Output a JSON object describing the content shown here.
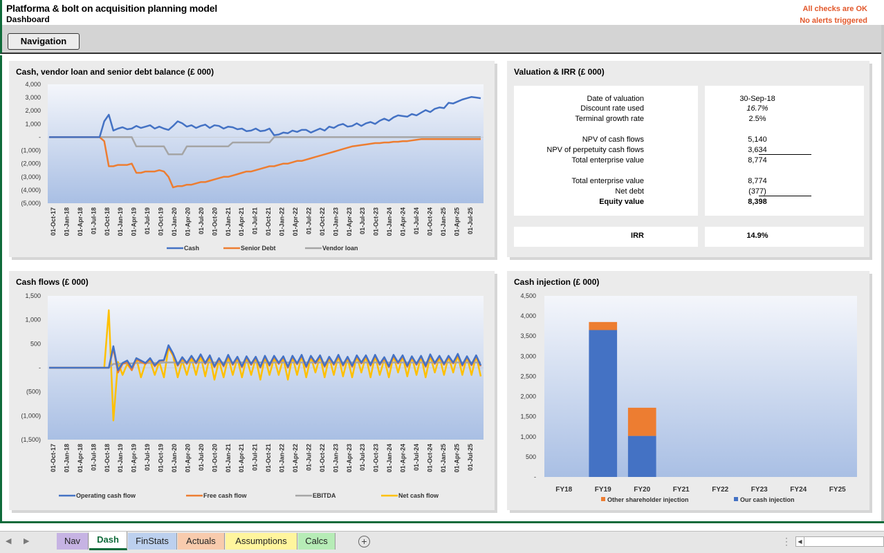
{
  "header": {
    "title": "Platforma & bolt on acquisition planning model",
    "subtitle": "Dashboard",
    "checks_status": "All checks are OK",
    "alerts_status": "No alerts triggered",
    "nav_button": "Navigation"
  },
  "panels": {
    "balance_title": "Cash, vendor loan and senior debt balance (£ 000)",
    "valuation_title": "Valuation & IRR (£ 000)",
    "cashflow_title": "Cash flows (£ 000)",
    "injection_title": "Cash injection (£ 000)"
  },
  "valuation": {
    "rows": [
      {
        "label": "Date of valuation",
        "value": "30-Sep-18"
      },
      {
        "label": "Discount rate used",
        "value": "16.7%"
      },
      {
        "label": "Terminal growth rate",
        "value": "2.5%"
      },
      {
        "label": "NPV of cash flows",
        "value": "5,140"
      },
      {
        "label": "NPV of perpetuity cash flows",
        "value": "3,634"
      },
      {
        "label": "Total enterprise value",
        "value": "8,774"
      },
      {
        "label": "Total enterprise value",
        "value": "8,774"
      },
      {
        "label": "Net debt",
        "value": "(377)"
      },
      {
        "label": "Equity value",
        "value": "8,398"
      }
    ],
    "irr_label": "IRR",
    "irr_value": "14.9%"
  },
  "tabs": [
    {
      "label": "Nav",
      "color": "#c6b3e3"
    },
    {
      "label": "Dash",
      "color": "#ffffff"
    },
    {
      "label": "FinStats",
      "color": "#bcd0ee"
    },
    {
      "label": "Actuals",
      "color": "#f8cbad"
    },
    {
      "label": "Assumptions",
      "color": "#fff59d"
    },
    {
      "label": "Calcs",
      "color": "#b6ecb6"
    }
  ],
  "chart_data": [
    {
      "type": "line",
      "title": "Cash, vendor loan and senior debt balance (£ 000)",
      "x_ticks": [
        "01-Oct-17",
        "01-Jan-18",
        "01-Apr-18",
        "01-Jul-18",
        "01-Oct-18",
        "01-Jan-19",
        "01-Apr-19",
        "01-Jul-19",
        "01-Oct-19",
        "01-Jan-20",
        "01-Apr-20",
        "01-Jul-20",
        "01-Oct-20",
        "01-Jan-21",
        "01-Apr-21",
        "01-Jul-21",
        "01-Oct-21",
        "01-Jan-22",
        "01-Apr-22",
        "01-Jul-22",
        "01-Oct-22",
        "01-Jan-23",
        "01-Apr-23",
        "01-Jul-23",
        "01-Oct-23",
        "01-Jan-24",
        "01-Apr-24",
        "01-Jul-24",
        "01-Oct-24",
        "01-Jan-25",
        "01-Apr-25",
        "01-Jul-25"
      ],
      "y_ticks": [
        "4,000",
        "3,000",
        "2,000",
        "1,000",
        "-",
        "(1,000)",
        "(2,000)",
        "(3,000)",
        "(4,000)",
        "(5,000)"
      ],
      "ylim": [
        -5000,
        4000
      ],
      "legend_position": "bottom",
      "series": [
        {
          "name": "Cash",
          "color": "#4472c4",
          "values": [
            0,
            0,
            0,
            0,
            0,
            0,
            0,
            0,
            0,
            0,
            0,
            0,
            1200,
            1700,
            500,
            650,
            750,
            600,
            650,
            850,
            700,
            800,
            900,
            650,
            800,
            650,
            550,
            850,
            1200,
            1050,
            800,
            900,
            700,
            850,
            950,
            700,
            900,
            850,
            650,
            800,
            750,
            600,
            650,
            450,
            500,
            650,
            450,
            500,
            650,
            150,
            200,
            350,
            300,
            500,
            400,
            550,
            550,
            350,
            500,
            650,
            500,
            800,
            700,
            900,
            1000,
            800,
            850,
            1050,
            850,
            1050,
            1150,
            1000,
            1250,
            1400,
            1250,
            1500,
            1650,
            1600,
            1550,
            1750,
            1650,
            1850,
            2050,
            1900,
            2150,
            2250,
            2200,
            2600,
            2550,
            2700,
            2850,
            2950,
            3050,
            3000,
            2950
          ]
        },
        {
          "name": "Senior Debt",
          "color": "#ed7d31",
          "values": [
            0,
            0,
            0,
            0,
            0,
            0,
            0,
            0,
            0,
            0,
            0,
            0,
            -300,
            -2200,
            -2200,
            -2100,
            -2100,
            -2100,
            -2000,
            -2700,
            -2700,
            -2600,
            -2600,
            -2600,
            -2500,
            -2600,
            -3000,
            -3800,
            -3700,
            -3700,
            -3600,
            -3600,
            -3500,
            -3400,
            -3400,
            -3300,
            -3200,
            -3100,
            -3000,
            -3000,
            -2900,
            -2800,
            -2700,
            -2600,
            -2600,
            -2500,
            -2400,
            -2300,
            -2200,
            -2200,
            -2100,
            -2000,
            -2000,
            -1900,
            -1800,
            -1800,
            -1700,
            -1600,
            -1500,
            -1400,
            -1300,
            -1200,
            -1100,
            -1000,
            -900,
            -800,
            -700,
            -650,
            -600,
            -550,
            -500,
            -450,
            -450,
            -400,
            -400,
            -350,
            -350,
            -300,
            -300,
            -250,
            -200,
            -150,
            -150,
            -150,
            -150,
            -150,
            -150,
            -150,
            -150,
            -150,
            -150,
            -150,
            -150,
            -150,
            -150
          ]
        },
        {
          "name": "Vendor loan",
          "color": "#a5a5a5",
          "values": [
            0,
            0,
            0,
            0,
            0,
            0,
            0,
            0,
            0,
            0,
            0,
            0,
            0,
            0,
            0,
            0,
            0,
            0,
            0,
            -700,
            -700,
            -700,
            -700,
            -700,
            -700,
            -700,
            -1300,
            -1300,
            -1300,
            -1300,
            -700,
            -700,
            -700,
            -700,
            -700,
            -700,
            -700,
            -700,
            -700,
            -700,
            -400,
            -400,
            -400,
            -400,
            -400,
            -400,
            -400,
            -400,
            -400,
            0,
            0,
            0,
            0,
            0,
            0,
            0,
            0,
            0,
            0,
            0,
            0,
            0,
            0,
            0,
            0,
            0,
            0,
            0,
            0,
            0,
            0,
            0,
            0,
            0,
            0,
            0,
            0,
            0,
            0,
            0,
            0,
            0,
            0,
            0,
            0,
            0,
            0,
            0,
            0,
            0,
            0,
            0,
            0,
            0,
            0
          ]
        }
      ]
    },
    {
      "type": "line",
      "title": "Cash flows (£ 000)",
      "x_ticks": [
        "01-Oct-17",
        "01-Jan-18",
        "01-Apr-18",
        "01-Jul-18",
        "01-Oct-18",
        "01-Jan-19",
        "01-Apr-19",
        "01-Jul-19",
        "01-Oct-19",
        "01-Jan-20",
        "01-Apr-20",
        "01-Jul-20",
        "01-Oct-20",
        "01-Jan-21",
        "01-Apr-21",
        "01-Jul-21",
        "01-Oct-21",
        "01-Jan-22",
        "01-Apr-22",
        "01-Jul-22",
        "01-Oct-22",
        "01-Jan-23",
        "01-Apr-23",
        "01-Jul-23",
        "01-Oct-23",
        "01-Jan-24",
        "01-Apr-24",
        "01-Jul-24",
        "01-Oct-24",
        "01-Jan-25",
        "01-Apr-25",
        "01-Jul-25"
      ],
      "y_ticks": [
        "1,500",
        "1,000",
        "500",
        "-",
        "(500)",
        "(1,000)",
        "(1,500)"
      ],
      "ylim": [
        -1500,
        1500
      ],
      "legend_position": "bottom",
      "series": [
        {
          "name": "Operating cash flow",
          "color": "#4472c4",
          "values": [
            0,
            0,
            0,
            0,
            0,
            0,
            0,
            0,
            0,
            0,
            0,
            0,
            0,
            0,
            450,
            -50,
            100,
            150,
            0,
            200,
            150,
            100,
            200,
            50,
            150,
            160,
            470,
            300,
            60,
            220,
            100,
            250,
            110,
            280,
            100,
            260,
            30,
            200,
            50,
            270,
            80,
            230,
            30,
            240,
            80,
            230,
            20,
            250,
            60,
            250,
            100,
            240,
            20,
            250,
            90,
            270,
            30,
            250,
            110,
            260,
            40,
            230,
            80,
            270,
            60,
            230,
            40,
            260,
            110,
            260,
            60,
            270,
            80,
            220,
            30,
            270,
            110,
            260,
            40,
            240,
            80,
            250,
            40,
            280,
            100,
            250,
            80,
            250,
            110,
            290,
            60,
            240,
            70,
            260,
            50
          ]
        },
        {
          "name": "Free cash flow",
          "color": "#ed7d31",
          "values": [
            0,
            0,
            0,
            0,
            0,
            0,
            0,
            0,
            0,
            0,
            0,
            0,
            0,
            0,
            400,
            -100,
            80,
            120,
            -50,
            180,
            120,
            80,
            180,
            30,
            140,
            150,
            440,
            280,
            40,
            200,
            80,
            230,
            90,
            260,
            80,
            240,
            10,
            180,
            30,
            250,
            60,
            210,
            10,
            220,
            60,
            210,
            0,
            230,
            40,
            230,
            80,
            220,
            0,
            230,
            70,
            250,
            10,
            230,
            90,
            240,
            20,
            210,
            60,
            250,
            40,
            210,
            20,
            240,
            90,
            240,
            40,
            250,
            60,
            200,
            10,
            250,
            90,
            240,
            20,
            220,
            60,
            230,
            20,
            260,
            80,
            230,
            60,
            230,
            90,
            270,
            40,
            220,
            50,
            240,
            30
          ]
        },
        {
          "name": "EBITDA",
          "color": "#a5a5a5",
          "values": [
            0,
            0,
            0,
            0,
            0,
            0,
            0,
            0,
            0,
            0,
            0,
            0,
            0,
            0,
            80,
            80,
            90,
            90,
            90,
            100,
            100,
            100,
            100,
            100,
            100,
            110,
            110,
            110,
            110,
            110,
            110,
            110,
            110,
            110,
            110,
            110,
            110,
            110,
            110,
            110,
            110,
            110,
            110,
            110,
            110,
            110,
            110,
            110,
            110,
            110,
            110,
            110,
            110,
            110,
            110,
            110,
            110,
            110,
            110,
            110,
            110,
            110,
            110,
            110,
            110,
            110,
            110,
            110,
            110,
            110,
            110,
            110,
            110,
            110,
            110,
            110,
            110,
            110,
            110,
            110,
            110,
            110,
            110,
            110,
            110,
            110,
            110,
            110,
            110,
            110,
            110,
            110,
            110,
            110,
            110
          ]
        },
        {
          "name": "Net cash flow",
          "color": "#ffc000",
          "values": [
            0,
            0,
            0,
            0,
            0,
            0,
            0,
            0,
            0,
            0,
            0,
            0,
            0,
            1200,
            -1100,
            120,
            -150,
            80,
            -50,
            200,
            -200,
            100,
            150,
            -150,
            120,
            -200,
            420,
            250,
            -200,
            150,
            -150,
            200,
            -150,
            250,
            -180,
            240,
            -250,
            150,
            -200,
            220,
            -150,
            200,
            -200,
            200,
            -150,
            200,
            -250,
            220,
            -150,
            200,
            -150,
            200,
            -250,
            230,
            -150,
            250,
            -200,
            230,
            -100,
            240,
            -200,
            220,
            -150,
            250,
            -180,
            200,
            -200,
            240,
            -100,
            240,
            -200,
            250,
            -150,
            180,
            -200,
            250,
            -100,
            240,
            -180,
            230,
            -150,
            240,
            -200,
            250,
            -100,
            230,
            -150,
            230,
            -100,
            260,
            -150,
            230,
            -150,
            250,
            -180
          ]
        }
      ]
    },
    {
      "type": "bar",
      "stacked": true,
      "title": "Cash injection (£ 000)",
      "categories": [
        "FY18",
        "FY19",
        "FY20",
        "FY21",
        "FY22",
        "FY23",
        "FY24",
        "FY25"
      ],
      "y_ticks": [
        "4,500",
        "4,000",
        "3,500",
        "3,000",
        "2,500",
        "2,000",
        "1,500",
        "1,000",
        "500",
        "-"
      ],
      "ylim": [
        0,
        4500
      ],
      "legend_position": "bottom",
      "series": [
        {
          "name": "Our cash injection",
          "color": "#4472c4",
          "values": [
            0,
            3650,
            1020,
            0,
            0,
            0,
            0,
            0
          ]
        },
        {
          "name": "Other shareholder injection",
          "color": "#ed7d31",
          "values": [
            0,
            200,
            700,
            0,
            0,
            0,
            0,
            0
          ]
        }
      ]
    }
  ]
}
